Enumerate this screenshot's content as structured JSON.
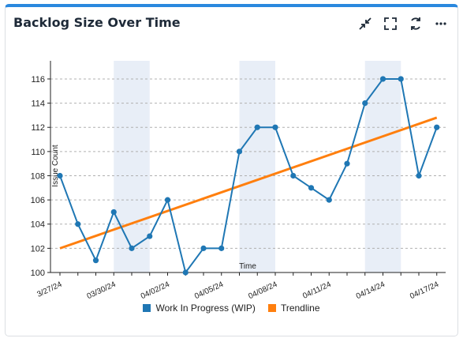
{
  "widget": {
    "title": "Backlog Size Over Time",
    "tools": [
      "minimize-icon",
      "fullscreen-icon",
      "refresh-icon",
      "more-icon"
    ]
  },
  "colors": {
    "wip": "#1f77b4",
    "trend": "#ff7f0e",
    "band": "#e8eef7",
    "grid": "#b0b0b0"
  },
  "chart_data": {
    "type": "line",
    "title": "",
    "xlabel": "Time",
    "ylabel": "Issue Count",
    "ylim": [
      100,
      117.5
    ],
    "yticks": [
      100,
      102,
      104,
      106,
      108,
      110,
      112,
      114,
      116
    ],
    "x": [
      "03/27/24",
      "03/28/24",
      "03/29/24",
      "03/30/24",
      "03/31/24",
      "04/01/24",
      "04/02/24",
      "04/03/24",
      "04/04/24",
      "04/05/24",
      "04/06/24",
      "04/07/24",
      "04/08/24",
      "04/09/24",
      "04/10/24",
      "04/11/24",
      "04/12/24",
      "04/13/24",
      "04/14/24",
      "04/15/24",
      "04/16/24",
      "04/17/24"
    ],
    "xtick_labels": [
      "03/27/24",
      "03/30/24",
      "04/02/24",
      "04/05/24",
      "04/08/24",
      "04/11/24",
      "04/14/24",
      "04/17/24"
    ],
    "x_tick_display": [
      "3/27/24",
      "03/30/24",
      "04/02/24",
      "04/05/24",
      "04/08/24",
      "04/11/24",
      "04/14/24",
      "04/17/24"
    ],
    "shaded_ranges": [
      [
        "03/30/24",
        "04/01/24"
      ],
      [
        "04/06/24",
        "04/08/24"
      ],
      [
        "04/13/24",
        "04/15/24"
      ]
    ],
    "series": [
      {
        "name": "Work In Progress (WIP)",
        "values": [
          108,
          104,
          101,
          105,
          102,
          103,
          106,
          100,
          102,
          102,
          110,
          112,
          112,
          108,
          107,
          106,
          109,
          114,
          116,
          116,
          108,
          112
        ]
      },
      {
        "name": "Trendline",
        "values_start": 102.0,
        "values_end": 112.8
      }
    ],
    "grid": "horizontal-dashed",
    "legend": "bottom-center"
  }
}
